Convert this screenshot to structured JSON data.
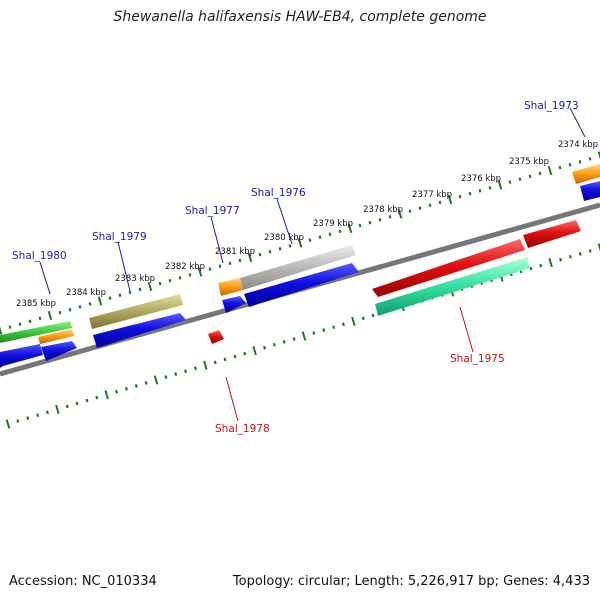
{
  "title": "Shewanella halifaxensis HAW-EB4, complete genome",
  "footer": {
    "accession": "Accession: NC_010334",
    "summary": "Topology: circular; Length: 5,226,917 bp; Genes: 4,433"
  },
  "colors": {
    "axis": "#777777",
    "tick": "#1e7a1e",
    "blue": "#1010e0",
    "red": "#e01010",
    "label_blue": "#1b1bb5",
    "label_red": "#cc1111"
  },
  "tick_labels": [
    "2385 kbp",
    "2384 kbp",
    "2383 kbp",
    "2382 kbp",
    "2381 kbp",
    "2380 kbp",
    "2379 kbp",
    "2378 kbp",
    "2377 kbp",
    "2376 kbp",
    "2375 kbp",
    "2374 kbp"
  ],
  "gene_labels": {
    "shal_1973": "Shal_1973",
    "shal_1975": "Shal_1975",
    "shal_1976": "Shal_1976",
    "shal_1977": "Shal_1977",
    "shal_1978": "Shal_1978",
    "shal_1979": "Shal_1979",
    "shal_1980": "Shal_1980"
  }
}
